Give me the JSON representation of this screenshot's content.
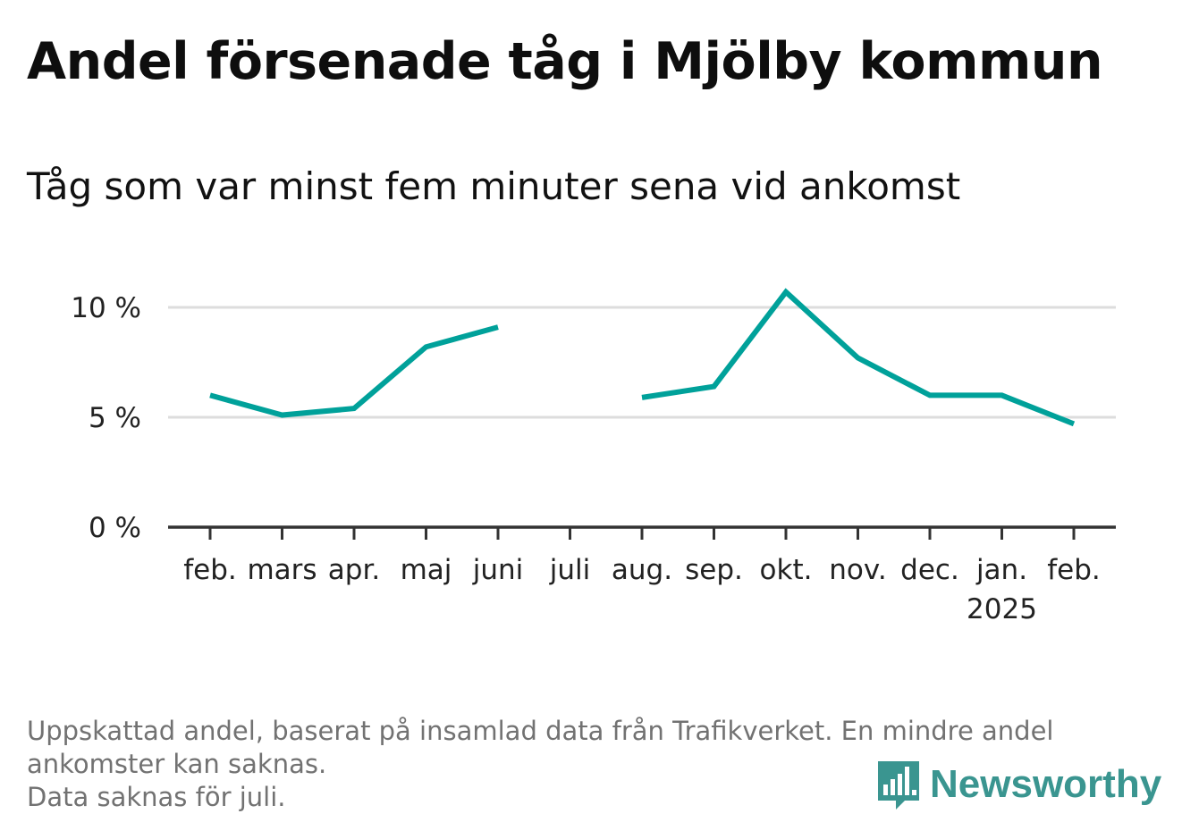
{
  "title": "Andel försenade tåg i Mjölby kommun",
  "subtitle": "Tåg som var minst fem minuter sena vid ankomst",
  "footnote": {
    "line1": "Uppskattad andel, baserat på insamlad data från Trafikverket. En mindre andel",
    "line2": "ankomster kan saknas.",
    "line3": "Data saknas för juli."
  },
  "brand": {
    "name": "Newsworthy",
    "color": "#3a9590",
    "icon": "bar-chart-speech-bubble-icon"
  },
  "chart_data": {
    "type": "line",
    "title": "Andel försenade tåg i Mjölby kommun",
    "subtitle": "Tåg som var minst fem minuter sena vid ankomst",
    "categories": [
      "feb.",
      "mars",
      "apr.",
      "maj",
      "juni",
      "juli",
      "aug.",
      "sep.",
      "okt.",
      "nov.",
      "dec.",
      "jan.",
      "feb."
    ],
    "year_label": {
      "index": 11,
      "text": "2025"
    },
    "series": [
      {
        "color": "#00a19a",
        "values": [
          6.0,
          5.1,
          5.4,
          8.2,
          9.1,
          null,
          5.9,
          6.4,
          10.7,
          7.7,
          6.0,
          6.0,
          4.7
        ]
      }
    ],
    "ylim": [
      0,
      11
    ],
    "yticks": [
      {
        "value": 0,
        "label": "0 %"
      },
      {
        "value": 5,
        "label": "5 %"
      },
      {
        "value": 10,
        "label": "10 %"
      }
    ],
    "grid": true,
    "legend": "none",
    "xlabel": "",
    "ylabel": ""
  }
}
